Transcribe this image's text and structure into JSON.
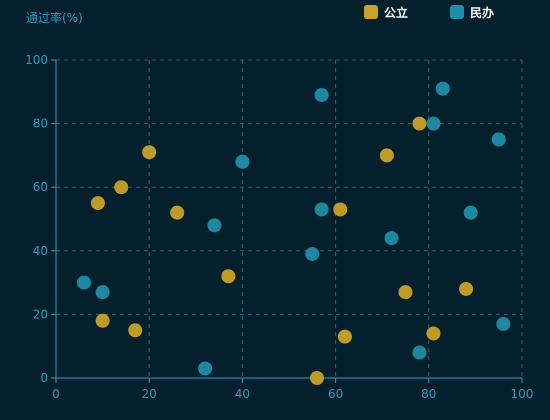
{
  "chart_data": {
    "type": "scatter",
    "ylabel": "通过率(%)",
    "xlabel": "",
    "xlim": [
      0,
      100
    ],
    "ylim": [
      0,
      100
    ],
    "xticks": [
      0,
      20,
      40,
      60,
      80,
      100
    ],
    "yticks": [
      0,
      20,
      40,
      60,
      80,
      100
    ],
    "grid": true,
    "legend_position": "top-right",
    "series": [
      {
        "name": "公立",
        "color": "#c9a227",
        "points": [
          [
            9,
            55
          ],
          [
            14,
            60
          ],
          [
            20,
            71
          ],
          [
            26,
            52
          ],
          [
            37,
            32
          ],
          [
            10,
            18
          ],
          [
            17,
            15
          ],
          [
            56,
            0
          ],
          [
            62,
            13
          ],
          [
            61,
            53
          ],
          [
            71,
            70
          ],
          [
            78,
            80
          ],
          [
            75,
            27
          ],
          [
            81,
            14
          ],
          [
            88,
            28
          ]
        ]
      },
      {
        "name": "民办",
        "color": "#1f8ea8",
        "points": [
          [
            6,
            30
          ],
          [
            10,
            27
          ],
          [
            32,
            3
          ],
          [
            34,
            48
          ],
          [
            40,
            68
          ],
          [
            55,
            39
          ],
          [
            57,
            53
          ],
          [
            57,
            89
          ],
          [
            72,
            44
          ],
          [
            78,
            8
          ],
          [
            81,
            80
          ],
          [
            83,
            91
          ],
          [
            89,
            52
          ],
          [
            95,
            75
          ],
          [
            96,
            17
          ]
        ]
      }
    ]
  }
}
